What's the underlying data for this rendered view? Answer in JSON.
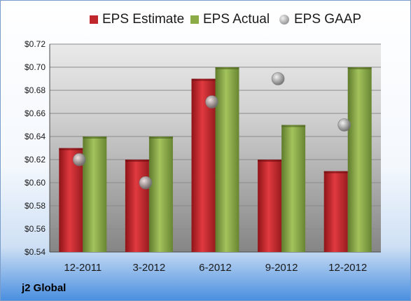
{
  "chart_data": {
    "type": "bar",
    "categories": [
      "12-2011",
      "3-2012",
      "6-2012",
      "9-2012",
      "12-2012"
    ],
    "series": [
      {
        "name": "EPS Estimate",
        "kind": "bar",
        "color": "#c0272d",
        "values": [
          0.63,
          0.62,
          0.69,
          0.62,
          0.61
        ]
      },
      {
        "name": "EPS Actual",
        "kind": "bar",
        "color": "#8aab45",
        "values": [
          0.64,
          0.64,
          0.7,
          0.65,
          0.7
        ]
      },
      {
        "name": "EPS GAAP",
        "kind": "scatter",
        "color": "#a0a0a0",
        "values": [
          0.62,
          0.6,
          0.67,
          0.69,
          0.65
        ]
      }
    ],
    "ylim": [
      0.54,
      0.72
    ],
    "yticks": [
      "$0.54",
      "$0.56",
      "$0.58",
      "$0.60",
      "$0.62",
      "$0.64",
      "$0.66",
      "$0.68",
      "$0.70",
      "$0.72"
    ],
    "grid": true,
    "legend_position": "top",
    "title": "",
    "xlabel": "",
    "ylabel": ""
  },
  "caption": "j2 Global"
}
